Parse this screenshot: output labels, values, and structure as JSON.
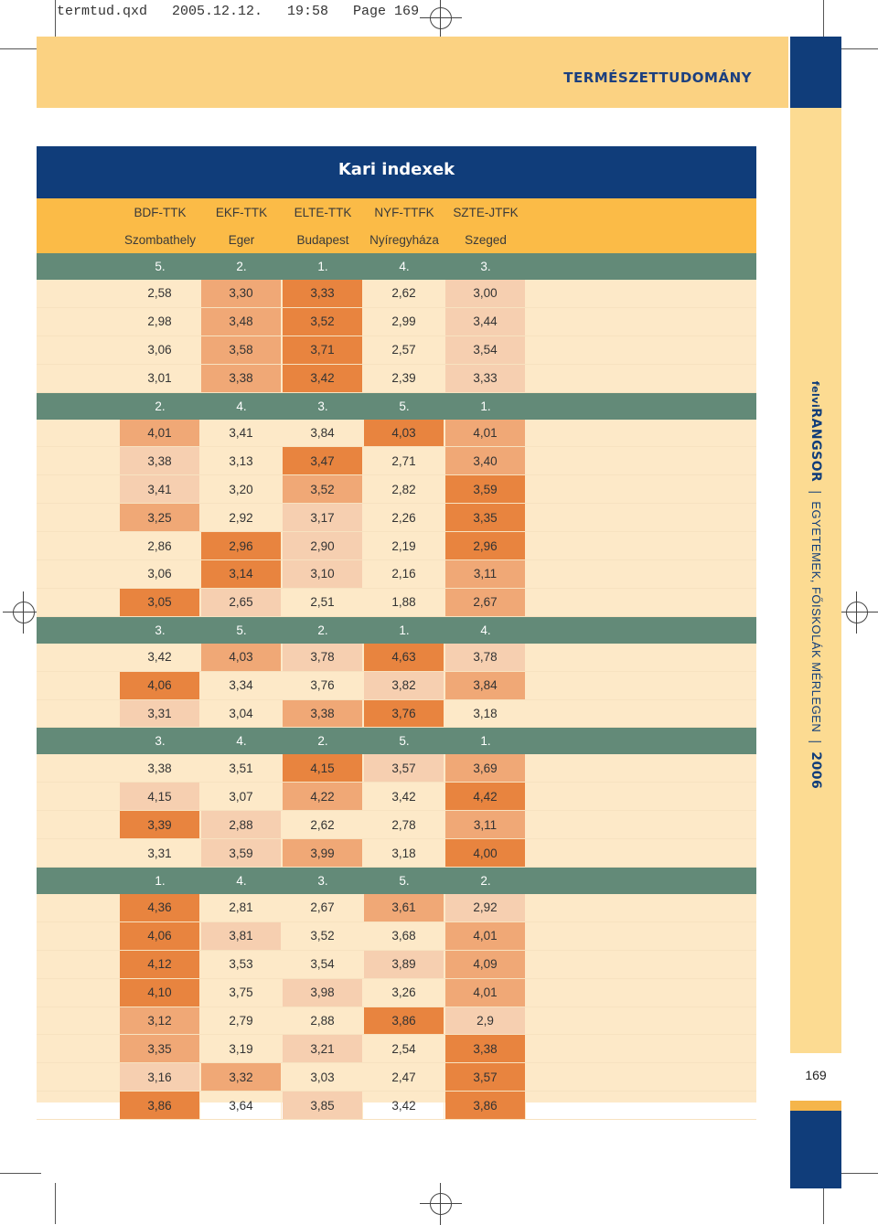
{
  "slug": "termtud.qxd   2005.12.12.   19:58   Page 169",
  "header": {
    "title": "TERMÉSZETTUDOMÁNY"
  },
  "sidebar": {
    "brand_prefix": "felvi",
    "brand": "RANGSOR",
    "subtitle": "EGYETEMEK, FŐISKOLÁK MÉRLEGEN",
    "year": "2006"
  },
  "page_number": "169",
  "table": {
    "title": "Kari indexek",
    "faculties": [
      "BDF-TTK",
      "EKF-TTK",
      "ELTE-TTK",
      "NYF-TTFK",
      "SZTE-JTFK"
    ],
    "cities": [
      "Szombathely",
      "Eger",
      "Budapest",
      "Nyíregyháza",
      "Szeged"
    ],
    "sections": [
      {
        "ranks": [
          "5.",
          "2.",
          "1.",
          "4.",
          "3."
        ],
        "rows": [
          [
            "2,58",
            "3,30",
            "3,33",
            "2,62",
            "3,00"
          ],
          [
            "2,98",
            "3,48",
            "3,52",
            "2,99",
            "3,44"
          ],
          [
            "3,06",
            "3,58",
            "3,71",
            "2,57",
            "3,54"
          ],
          [
            "3,01",
            "3,38",
            "3,42",
            "2,39",
            "3,33"
          ]
        ]
      },
      {
        "ranks": [
          "2.",
          "4.",
          "3.",
          "5.",
          "1."
        ],
        "rows": [
          [
            "4,01",
            "3,41",
            "3,84",
            "4,03",
            "4,01"
          ],
          [
            "3,38",
            "3,13",
            "3,47",
            "2,71",
            "3,40"
          ],
          [
            "3,41",
            "3,20",
            "3,52",
            "2,82",
            "3,59"
          ],
          [
            "3,25",
            "2,92",
            "3,17",
            "2,26",
            "3,35"
          ],
          [
            "2,86",
            "2,96",
            "2,90",
            "2,19",
            "2,96"
          ],
          [
            "3,06",
            "3,14",
            "3,10",
            "2,16",
            "3,11"
          ],
          [
            "3,05",
            "2,65",
            "2,51",
            "1,88",
            "2,67"
          ]
        ]
      },
      {
        "ranks": [
          "3.",
          "5.",
          "2.",
          "1.",
          "4."
        ],
        "rows": [
          [
            "3,42",
            "4,03",
            "3,78",
            "4,63",
            "3,78"
          ],
          [
            "4,06",
            "3,34",
            "3,76",
            "3,82",
            "3,84"
          ],
          [
            "3,31",
            "3,04",
            "3,38",
            "3,76",
            "3,18"
          ]
        ]
      },
      {
        "ranks": [
          "3.",
          "4.",
          "2.",
          "5.",
          "1."
        ],
        "rows": [
          [
            "3,38",
            "3,51",
            "4,15",
            "3,57",
            "3,69"
          ],
          [
            "4,15",
            "3,07",
            "4,22",
            "3,42",
            "4,42"
          ],
          [
            "3,39",
            "2,88",
            "2,62",
            "2,78",
            "3,11"
          ],
          [
            "3,31",
            "3,59",
            "3,99",
            "3,18",
            "4,00"
          ]
        ]
      },
      {
        "ranks": [
          "1.",
          "4.",
          "3.",
          "5.",
          "2."
        ],
        "rows": [
          [
            "4,36",
            "2,81",
            "2,67",
            "3,61",
            "2,92"
          ],
          [
            "4,06",
            "3,81",
            "3,52",
            "3,68",
            "4,01"
          ],
          [
            "4,12",
            "3,53",
            "3,54",
            "3,89",
            "4,09"
          ],
          [
            "4,10",
            "3,75",
            "3,98",
            "3,26",
            "4,01"
          ],
          [
            "3,12",
            "2,79",
            "2,88",
            "3,86",
            "2,9"
          ],
          [
            "3,35",
            "3,19",
            "3,21",
            "2,54",
            "3,38"
          ],
          [
            "3,16",
            "3,32",
            "3,03",
            "2,47",
            "3,57"
          ],
          [
            "3,86",
            "3,64",
            "3,85",
            "3,42",
            "3,86"
          ]
        ]
      }
    ]
  }
}
